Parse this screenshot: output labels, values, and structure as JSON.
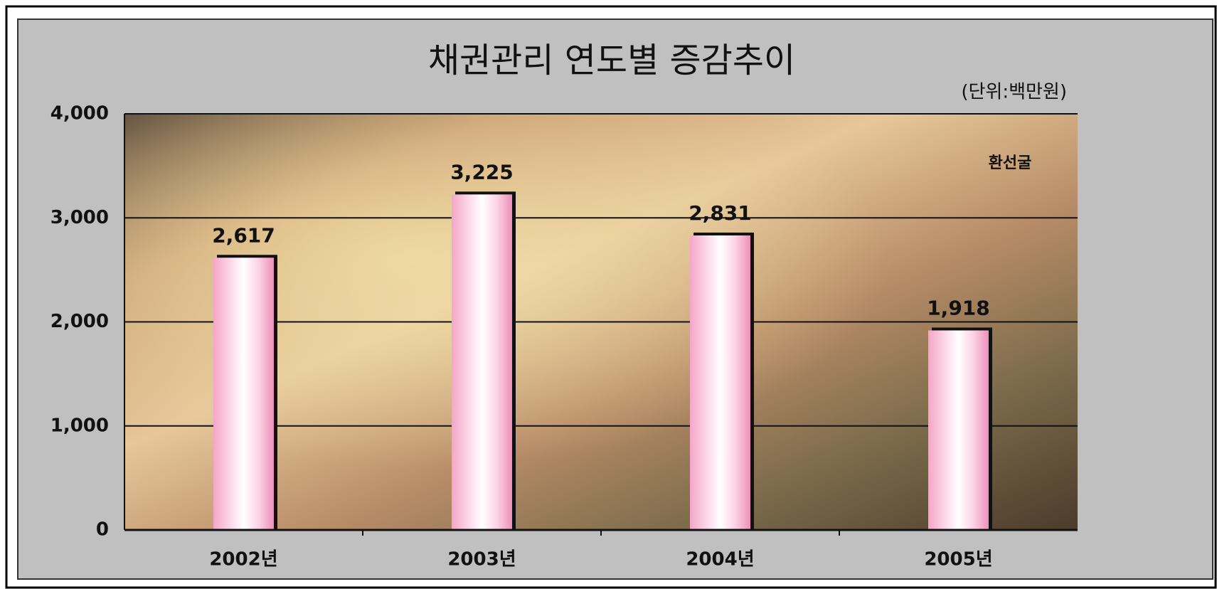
{
  "chart_data": {
    "type": "bar",
    "title": "채권관리 연도별 증감추이",
    "subtitle": "(단위:백만원)",
    "annotation": "환선굴",
    "categories": [
      "2002년",
      "2003년",
      "2004년",
      "2005년"
    ],
    "values": [
      2617,
      3225,
      2831,
      1918
    ],
    "value_labels": [
      "2,617",
      "3,225",
      "2,831",
      "1,918"
    ],
    "color": "#f4a6c8",
    "ylim": [
      0,
      4000
    ],
    "yticks": [
      0,
      {
        "value": 1000,
        "label": "1,000"
      },
      {
        "value": 2000,
        "label": "2,000"
      },
      {
        "value": 3000,
        "label": "3,000"
      },
      {
        "value": 4000,
        "label": "4,000"
      }
    ],
    "grid": true
  }
}
